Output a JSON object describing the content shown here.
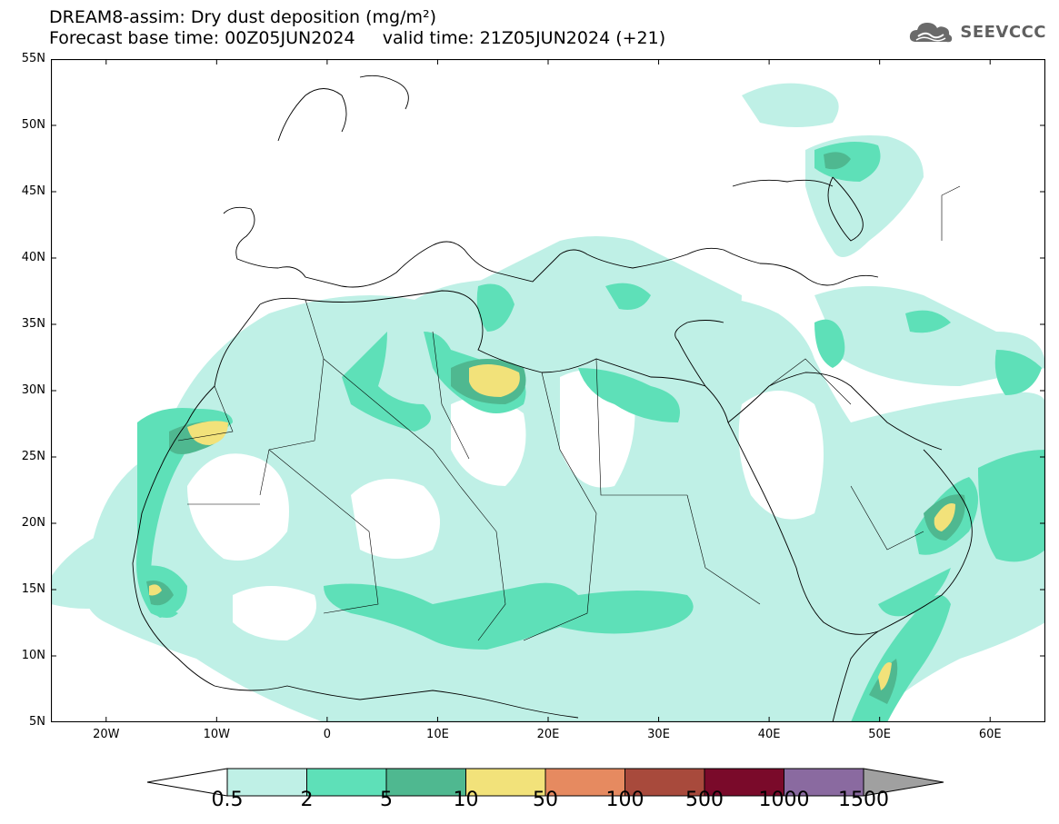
{
  "header": {
    "line1": "DREAM8-assim: Dry dust deposition (mg/m²)",
    "line2_left": "Forecast base time: 00Z05JUN2024",
    "line2_right": "valid time: 21Z05JUN2024 (+21)"
  },
  "logo": {
    "text": "SEEVCCC",
    "icon": "cloud-icon"
  },
  "map": {
    "lat_labels": [
      "55N",
      "50N",
      "45N",
      "40N",
      "35N",
      "30N",
      "25N",
      "20N",
      "15N",
      "10N",
      "5N"
    ],
    "lon_labels": [
      "20W",
      "10W",
      "0",
      "10E",
      "20E",
      "30E",
      "40E",
      "50E",
      "60E"
    ],
    "lat_range": [
      5,
      55
    ],
    "lon_range": [
      -25,
      65
    ]
  },
  "colorbar": {
    "labels": [
      "0.5",
      "2",
      "5",
      "10",
      "50",
      "100",
      "500",
      "1000",
      "1500"
    ],
    "colors": [
      "#bff0e6",
      "#5ee0b8",
      "#4fb890",
      "#f2e27a",
      "#e68a60",
      "#a84a3c",
      "#7a0a2a",
      "#8a6aa0"
    ],
    "under_color": "#ffffff",
    "over_color": "#a0a0a0"
  }
}
